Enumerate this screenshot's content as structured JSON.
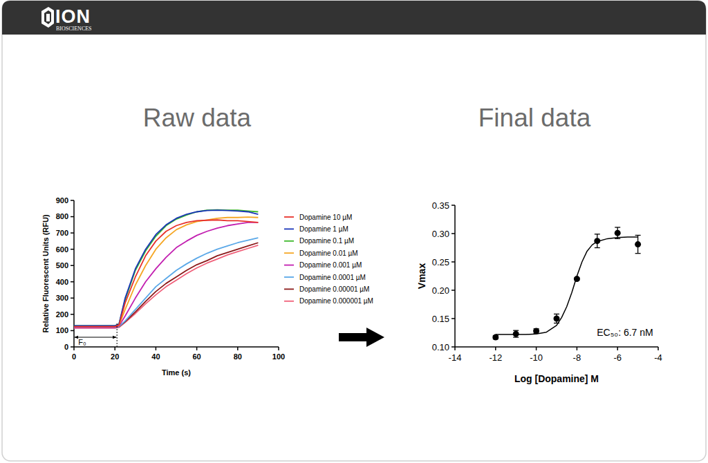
{
  "header": {
    "brand": "ION",
    "brand_sub": "BIOSCIENCES"
  },
  "chart_data": [
    {
      "type": "line",
      "title": "Raw data",
      "x_label": "Time (s)",
      "y_label": "Relative Fluorescent Units (RFU)",
      "x": [
        0,
        5,
        10,
        15,
        20,
        22,
        25,
        30,
        35,
        40,
        45,
        50,
        55,
        60,
        65,
        70,
        75,
        80,
        85,
        90
      ],
      "series": [
        {
          "name": "Dopamine 10 µM",
          "color": "#e8322b",
          "values": [
            125,
            125,
            125,
            125,
            125,
            135,
            270,
            430,
            560,
            650,
            710,
            745,
            765,
            775,
            778,
            780,
            775,
            775,
            770,
            765
          ]
        },
        {
          "name": "Dopamine 1 µM",
          "color": "#1a35b8",
          "values": [
            130,
            130,
            130,
            130,
            130,
            140,
            300,
            480,
            600,
            690,
            750,
            790,
            815,
            830,
            838,
            840,
            838,
            835,
            830,
            815
          ]
        },
        {
          "name": "Dopamine 0.1 µM",
          "color": "#3cb82a",
          "values": [
            130,
            130,
            130,
            130,
            130,
            140,
            290,
            470,
            590,
            680,
            745,
            785,
            810,
            830,
            840,
            842,
            840,
            840,
            835,
            830
          ]
        },
        {
          "name": "Dopamine 0.01 µM",
          "color": "#f5a623",
          "values": [
            125,
            125,
            125,
            125,
            125,
            132,
            230,
            380,
            500,
            600,
            670,
            720,
            750,
            770,
            780,
            790,
            795,
            795,
            798,
            795
          ]
        },
        {
          "name": "Dopamine 0.001 µM",
          "color": "#c21fb0",
          "values": [
            120,
            120,
            120,
            120,
            120,
            128,
            190,
            300,
            400,
            480,
            550,
            610,
            650,
            685,
            710,
            730,
            745,
            755,
            765,
            765
          ]
        },
        {
          "name": "Dopamine 0.0001 µM",
          "color": "#5aa8e8",
          "values": [
            118,
            118,
            118,
            118,
            118,
            125,
            160,
            230,
            300,
            370,
            420,
            470,
            510,
            545,
            575,
            600,
            620,
            640,
            655,
            670
          ]
        },
        {
          "name": "Dopamine 0.00001 µM",
          "color": "#8b1a1a",
          "values": [
            118,
            118,
            118,
            118,
            118,
            124,
            155,
            215,
            280,
            340,
            390,
            430,
            470,
            505,
            530,
            560,
            580,
            600,
            620,
            640
          ]
        },
        {
          "name": "Dopamine 0.000001 µM",
          "color": "#f0607a",
          "values": [
            115,
            115,
            115,
            115,
            115,
            120,
            150,
            205,
            265,
            320,
            370,
            410,
            450,
            485,
            515,
            540,
            565,
            585,
            605,
            625
          ]
        }
      ],
      "xlim": [
        0,
        100
      ],
      "xticks": [
        0,
        20,
        40,
        60,
        80,
        100
      ],
      "ylim": [
        0,
        900
      ],
      "yticks": [
        0,
        100,
        200,
        300,
        400,
        500,
        600,
        700,
        800,
        900
      ],
      "grid": false,
      "legend": "right",
      "annotations": [
        {
          "text": "F₀",
          "x": [
            0,
            21
          ]
        }
      ]
    },
    {
      "type": "scatter",
      "title": "Final data",
      "x_label": "Log [Dopamine] M",
      "y_label": "Vmax",
      "series": [
        {
          "type": "scatter",
          "marker": "circle",
          "color": "#000000",
          "x": [
            -12,
            -11,
            -10,
            -9,
            -8,
            -7,
            -6,
            -5
          ],
          "values": [
            0.117,
            0.123,
            0.128,
            0.15,
            0.22,
            0.287,
            0.301,
            0.281
          ],
          "errors": [
            0.003,
            0.006,
            0.004,
            0.008,
            0.002,
            0.012,
            0.01,
            0.016
          ]
        },
        {
          "type": "line",
          "line_style": "solid",
          "color": "#000000",
          "x": [
            -12,
            -11.5,
            -11,
            -10.5,
            -10,
            -9.5,
            -9,
            -8.75,
            -8.5,
            -8.25,
            -8,
            -7.75,
            -7.5,
            -7.25,
            -7,
            -6.5,
            -6,
            -5.5,
            -5
          ],
          "values": [
            0.122,
            0.122,
            0.122,
            0.122,
            0.123,
            0.126,
            0.138,
            0.152,
            0.171,
            0.196,
            0.225,
            0.25,
            0.269,
            0.28,
            0.286,
            0.291,
            0.293,
            0.294,
            0.294
          ]
        }
      ],
      "xlim": [
        -14,
        -4
      ],
      "xticks": [
        -14,
        -12,
        -10,
        -8,
        -6,
        -4
      ],
      "ylim": [
        0.1,
        0.35
      ],
      "yticks": [
        {
          "value": 0.1,
          "label": "0.10"
        },
        0.15,
        {
          "value": 0.2,
          "label": "0.20"
        },
        0.25,
        {
          "value": 0.3,
          "label": "0.30"
        },
        0.35
      ],
      "grid": false,
      "annotations": [
        {
          "text": "EC₅₀: 6.7 nM"
        }
      ]
    }
  ]
}
